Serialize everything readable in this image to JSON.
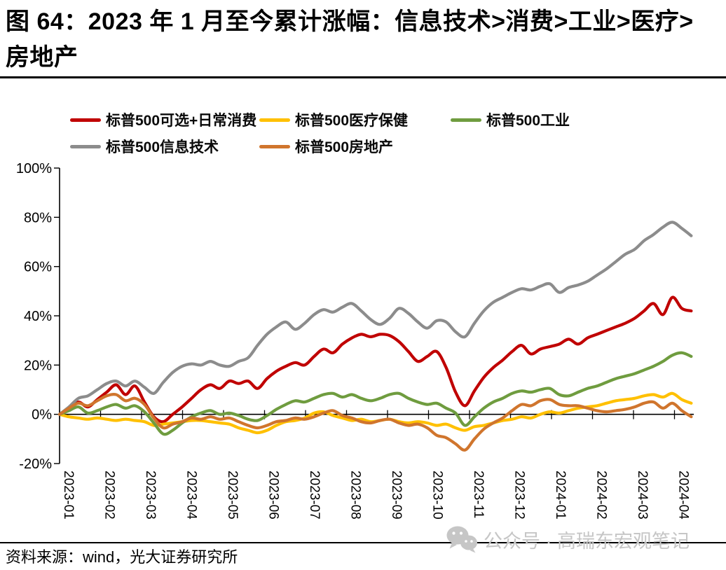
{
  "title": "图 64：2023 年 1 月至今累计涨幅：信息技术>消费>工业>医疗>房地产",
  "source_note": "资料来源：wind，光大证券研究所",
  "watermark": {
    "text": "公众号 · 高瑞东宏观笔记",
    "icon": "wechat-icon"
  },
  "chart_data": {
    "type": "line",
    "title": "2023 年 1 月至今累计涨幅：信息技术>消费>工业>医疗>房地产",
    "xlabel": "",
    "ylabel": "",
    "ylim": [
      -20,
      100
    ],
    "ytick_step": 20,
    "ytick_labels": [
      "100%",
      "80%",
      "60%",
      "40%",
      "20%",
      "0%",
      "-20%"
    ],
    "x_labels": [
      "2023-01",
      "2023-02",
      "2023-03",
      "2023-04",
      "2023-05",
      "2023-06",
      "2023-07",
      "2023-08",
      "2023-09",
      "2023-10",
      "2023-11",
      "2023-12",
      "2024-01",
      "2024-02",
      "2024-03",
      "2024-04"
    ],
    "x_start": "2023-01",
    "x_interval_days": 7,
    "grid": false,
    "legend_position": "top",
    "zero_axis": true,
    "unit": "percent",
    "series": [
      {
        "name": "标普500可选+日常消费",
        "color": "#C00000",
        "values": [
          0,
          2.5,
          5,
          3,
          6,
          9,
          12,
          8,
          11.5,
          5,
          -1,
          -3,
          0,
          3,
          6.5,
          10,
          12,
          10.5,
          13.5,
          12.5,
          13.5,
          10.5,
          14.5,
          17.5,
          19.5,
          21,
          20,
          23.5,
          26.5,
          25,
          28.5,
          31,
          32.5,
          31.5,
          32.5,
          32,
          29.5,
          25.5,
          21.5,
          23.5,
          25.5,
          19,
          9,
          3.5,
          9.5,
          15,
          19,
          22,
          25.5,
          28,
          24.5,
          26.5,
          27.5,
          28.5,
          30.5,
          28.5,
          31,
          32.5,
          34,
          35.5,
          37,
          39,
          42,
          45,
          40.5,
          47.5,
          43,
          42
        ]
      },
      {
        "name": "标普500医疗保健",
        "color": "#FFC000",
        "values": [
          0,
          -1,
          -1.5,
          -2,
          -1.5,
          -2,
          -2.5,
          -2,
          -2.5,
          -3,
          -4.5,
          -4,
          -3.5,
          -3,
          -2.5,
          -2.5,
          -3,
          -3.5,
          -4,
          -5.5,
          -6.5,
          -7.5,
          -6.5,
          -4.5,
          -3,
          -2.5,
          -1.5,
          0.5,
          1,
          -0.5,
          -1.5,
          -2.5,
          -2,
          -3,
          -2.5,
          -2,
          -3,
          -3.5,
          -3,
          -3.5,
          -4.5,
          -4,
          -5.5,
          -6.5,
          -5,
          -4.5,
          -3.5,
          -2.5,
          -2,
          -1,
          -1.5,
          0,
          1,
          0.5,
          1.5,
          2.5,
          3,
          3.5,
          4.5,
          5.5,
          6,
          6.5,
          7.5,
          8,
          7,
          8.5,
          6,
          4.5
        ]
      },
      {
        "name": "标普500工业",
        "color": "#6F9C3F",
        "values": [
          0,
          1.5,
          3,
          0.5,
          1.5,
          3,
          4,
          2.5,
          3.5,
          1,
          -3.5,
          -8,
          -6.5,
          -3.5,
          -1,
          0.5,
          1.5,
          0,
          0.5,
          -0.5,
          -2,
          -2.5,
          -0.5,
          2,
          4,
          5.5,
          5,
          6.5,
          8,
          8.5,
          7,
          8,
          6.5,
          5.5,
          6.5,
          8,
          8.5,
          6.5,
          5,
          4,
          4.5,
          2.5,
          0.5,
          -4.5,
          -1,
          2.5,
          5,
          6.5,
          8.5,
          9.5,
          9,
          10,
          10.5,
          8,
          7.5,
          9,
          10.5,
          11.5,
          13,
          14.5,
          15.5,
          16.5,
          18,
          19.5,
          21.5,
          24,
          25,
          23.5
        ]
      },
      {
        "name": "标普500信息技术",
        "color": "#8C8C8C",
        "values": [
          0,
          3,
          6.5,
          7.5,
          10,
          12.5,
          13.5,
          11.5,
          13.5,
          11,
          8.5,
          13,
          17,
          19.5,
          20.5,
          20,
          21.5,
          20,
          19.5,
          21.5,
          23,
          28,
          32.5,
          35.5,
          37.5,
          34.5,
          37,
          40.5,
          42.5,
          41.5,
          43.5,
          45,
          42,
          38.5,
          36.5,
          39,
          43,
          41,
          37.5,
          35,
          38,
          37.5,
          33.5,
          31.5,
          37,
          42,
          45.5,
          47.5,
          49.5,
          51,
          50.5,
          52,
          53,
          49.5,
          51.5,
          52.5,
          54,
          56.5,
          59,
          62,
          65,
          67,
          70.5,
          73,
          76,
          78,
          75.5,
          72.5
        ]
      },
      {
        "name": "标普500房地产",
        "color": "#D0752D",
        "values": [
          0,
          2.5,
          4.5,
          3.5,
          5.5,
          7.5,
          8,
          5.5,
          6.5,
          4,
          -1.5,
          -5.5,
          -4,
          -3,
          -1.5,
          -2,
          -1,
          -2,
          -1.5,
          -3,
          -4.5,
          -5.5,
          -4.5,
          -3,
          -2.5,
          -1.5,
          -2,
          -1,
          0.5,
          1.5,
          -0.5,
          -1.5,
          -3,
          -3.5,
          -2.5,
          -2,
          -3.5,
          -4.5,
          -4,
          -5.5,
          -8.5,
          -9.5,
          -12,
          -14.5,
          -10,
          -6,
          -3.5,
          -1.5,
          1.5,
          4,
          3.5,
          5.5,
          6,
          4,
          3.5,
          3.5,
          2.5,
          1.5,
          1,
          1.5,
          2,
          3,
          4.5,
          5,
          2.5,
          4.5,
          1.5,
          -1
        ]
      }
    ]
  }
}
